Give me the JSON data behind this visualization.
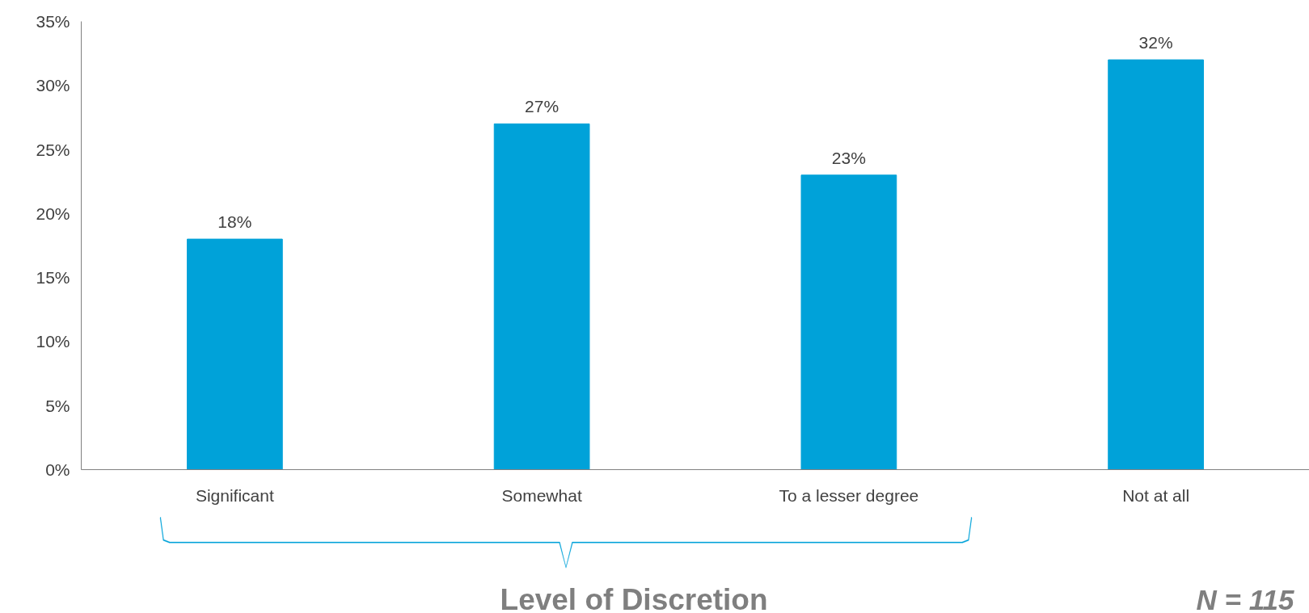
{
  "chart_data": {
    "type": "bar",
    "xlabel": "Level of Discretion",
    "categories": [
      "Significant",
      "Somewhat",
      "To a lesser degree",
      "Not at all"
    ],
    "values": [
      18,
      27,
      23,
      32
    ],
    "color": "#00a2d9",
    "ylim": [
      0,
      35
    ],
    "yticks": [
      {
        "value": 0,
        "label": "0%"
      },
      {
        "value": 5,
        "label": "5%"
      },
      {
        "value": 10,
        "label": "10%"
      },
      {
        "value": 15,
        "label": "15%"
      },
      {
        "value": 20,
        "label": "20%"
      },
      {
        "value": 25,
        "label": "25%"
      },
      {
        "value": 30,
        "label": "30%"
      },
      {
        "value": 35,
        "label": "35%"
      }
    ],
    "value_labels": [
      "18%",
      "27%",
      "23%",
      "32%"
    ],
    "grid": false,
    "annotations": [
      "N = 115"
    ]
  }
}
